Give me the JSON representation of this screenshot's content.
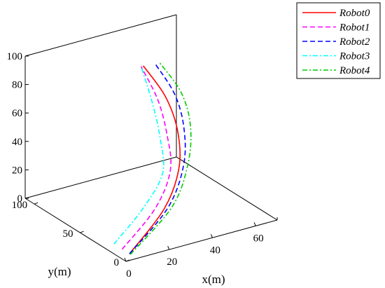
{
  "chart_data": {
    "type": "line",
    "projection": "3d",
    "xlabel": "x(m)",
    "ylabel": "y(m)",
    "zlabel": "",
    "xlim": [
      0,
      70
    ],
    "ylim": [
      0,
      110
    ],
    "zlim": [
      0,
      100
    ],
    "xticks": [
      "0",
      "20",
      "40",
      "60"
    ],
    "yticks": [
      "0",
      "50",
      "100"
    ],
    "zticks": [
      "0",
      "20",
      "40",
      "60",
      "80",
      "100"
    ],
    "grid": false,
    "legend_position": "top-right",
    "series": [
      {
        "name": "Robot0",
        "color": "#ff0000",
        "dash": "solid",
        "points": [
          [
            5,
            8,
            0
          ],
          [
            25,
            17,
            20
          ],
          [
            36,
            27,
            40
          ],
          [
            40,
            38,
            60
          ],
          [
            39,
            49,
            80
          ],
          [
            33,
            59,
            100
          ]
        ]
      },
      {
        "name": "Robot1",
        "color": "#ff00ff",
        "dash": "dashed",
        "points": [
          [
            5,
            16,
            0
          ],
          [
            22,
            20,
            20
          ],
          [
            32,
            27,
            40
          ],
          [
            35,
            38,
            60
          ],
          [
            35,
            48,
            80
          ],
          [
            32,
            59,
            100
          ]
        ]
      },
      {
        "name": "Robot2",
        "color": "#0000ff",
        "dash": "dashed",
        "points": [
          [
            5,
            8,
            0
          ],
          [
            26,
            16,
            20
          ],
          [
            38,
            27,
            40
          ],
          [
            43,
            38,
            60
          ],
          [
            43,
            48,
            80
          ],
          [
            38,
            58,
            100
          ]
        ]
      },
      {
        "name": "Robot3",
        "color": "#00ffff",
        "dash": "dashdot",
        "points": [
          [
            5,
            25,
            0
          ],
          [
            18,
            24,
            20
          ],
          [
            28,
            26,
            40
          ],
          [
            31,
            36,
            60
          ],
          [
            32,
            47,
            80
          ],
          [
            32,
            59,
            100
          ]
        ]
      },
      {
        "name": "Robot4",
        "color": "#00cc00",
        "dash": "dashdot",
        "points": [
          [
            5,
            7,
            0
          ],
          [
            28,
            16,
            20
          ],
          [
            40,
            27,
            40
          ],
          [
            46,
            38,
            60
          ],
          [
            46,
            48,
            80
          ],
          [
            40,
            58,
            100
          ]
        ]
      }
    ]
  }
}
